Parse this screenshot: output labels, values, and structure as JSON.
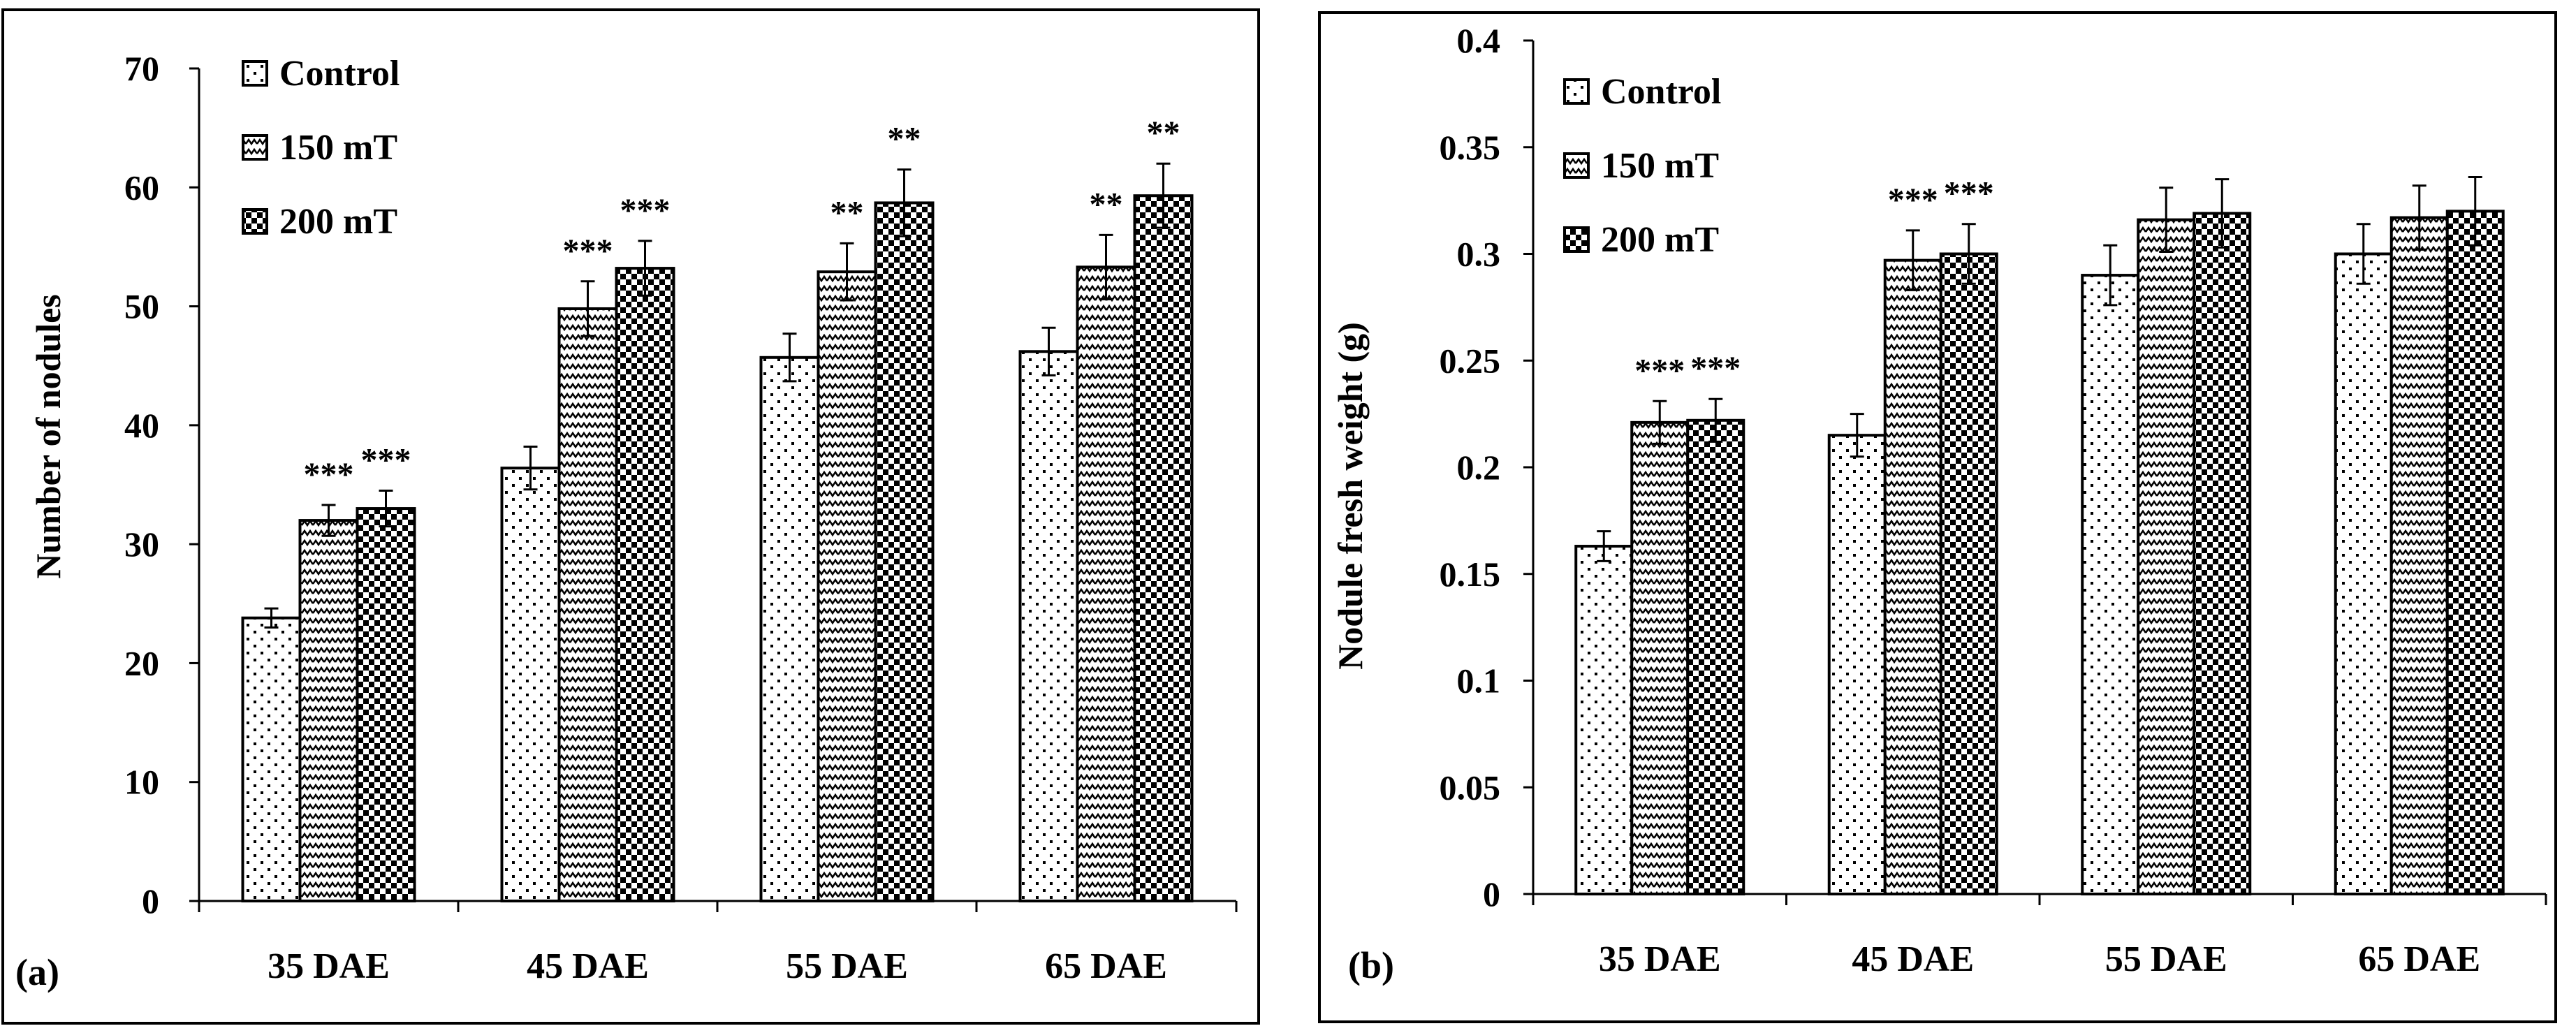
{
  "chart_data": [
    {
      "panel_label": "(a)",
      "type": "bar",
      "ylabel": "Number of nodules",
      "xlabel": "",
      "ylim": [
        0,
        70
      ],
      "yticks": [
        "0",
        "10",
        "20",
        "30",
        "40",
        "50",
        "60",
        "70"
      ],
      "categories": [
        "35 DAE",
        "45 DAE",
        "55 DAE",
        "65 DAE"
      ],
      "series": [
        {
          "name": "Control",
          "pattern": "dots",
          "values": [
            23.8,
            36.4,
            45.7,
            46.2
          ],
          "errors": [
            0.8,
            1.8,
            2.0,
            2.0
          ],
          "sig": [
            "",
            "",
            "",
            ""
          ]
        },
        {
          "name": "150 mT",
          "pattern": "zigzag",
          "values": [
            32.0,
            49.8,
            52.9,
            53.3
          ],
          "errors": [
            1.3,
            2.3,
            2.4,
            2.7
          ],
          "sig": [
            "***",
            "***",
            "**",
            "**"
          ]
        },
        {
          "name": "200 mT",
          "pattern": "checker",
          "values": [
            33.0,
            53.2,
            58.7,
            59.3
          ],
          "errors": [
            1.5,
            2.3,
            2.8,
            2.7
          ],
          "sig": [
            "***",
            "***",
            "**",
            "**"
          ]
        }
      ],
      "legend": [
        "Control",
        "150 mT",
        "200 mT"
      ]
    },
    {
      "panel_label": "(b)",
      "type": "bar",
      "ylabel": "Nodule fresh weight (g)",
      "xlabel": "",
      "ylim": [
        0,
        0.4
      ],
      "yticks": [
        "0",
        "0.05",
        "0.1",
        "0.15",
        "0.2",
        "0.25",
        "0.3",
        "0.35",
        "0.4"
      ],
      "categories": [
        "35 DAE",
        "45 DAE",
        "55 DAE",
        "65 DAE"
      ],
      "series": [
        {
          "name": "Control",
          "pattern": "dots",
          "values": [
            0.163,
            0.215,
            0.29,
            0.3
          ],
          "errors": [
            0.007,
            0.01,
            0.014,
            0.014
          ],
          "sig": [
            "",
            "",
            "",
            ""
          ]
        },
        {
          "name": "150 mT",
          "pattern": "zigzag",
          "values": [
            0.221,
            0.297,
            0.316,
            0.317
          ],
          "errors": [
            0.01,
            0.014,
            0.015,
            0.015
          ],
          "sig": [
            "***",
            "***",
            "",
            ""
          ]
        },
        {
          "name": "200 mT",
          "pattern": "checker",
          "values": [
            0.222,
            0.3,
            0.319,
            0.32
          ],
          "errors": [
            0.01,
            0.014,
            0.016,
            0.016
          ],
          "sig": [
            "***",
            "***",
            "",
            ""
          ]
        }
      ],
      "legend": [
        "Control",
        "150 mT",
        "200 mT"
      ]
    }
  ]
}
